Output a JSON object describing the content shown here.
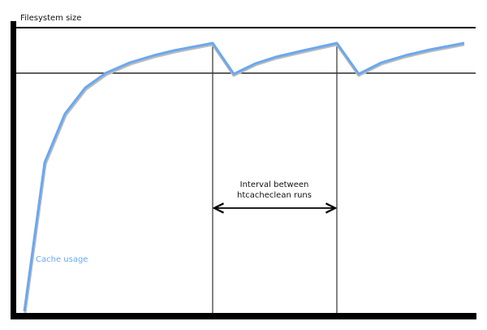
{
  "y_axis_label": "Filesystem size",
  "series_label": "Cache usage",
  "interval_label": [
    "Interval between",
    "htcacheclean runs"
  ],
  "colors": {
    "cache_line": "#6aa8f0",
    "axes": "#000000",
    "guides": "#333333"
  }
}
